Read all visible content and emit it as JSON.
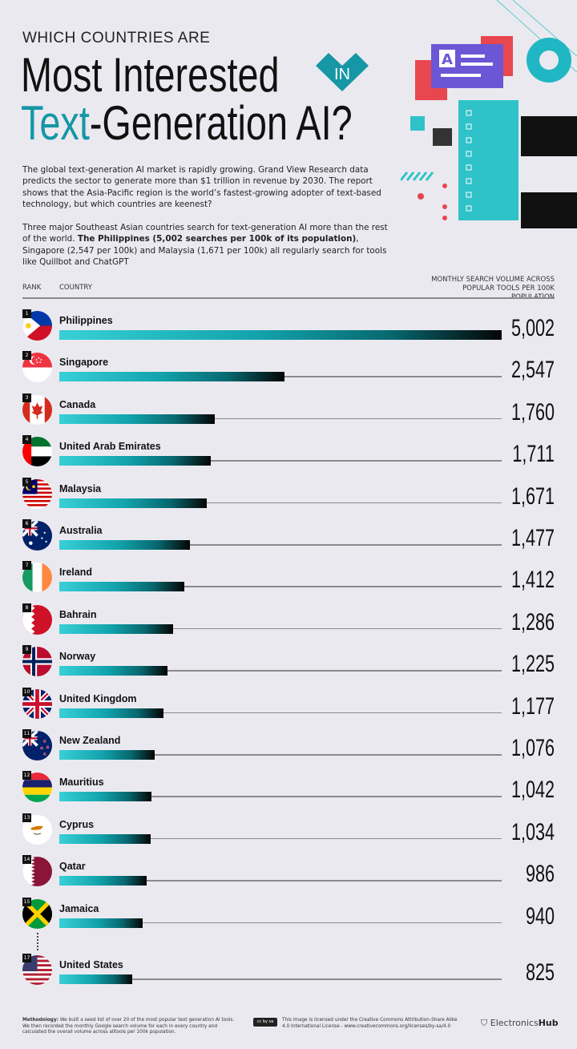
{
  "header": {
    "kicker": "WHICH COUNTRIES ARE",
    "title_line1": "Most Interested",
    "badge": "IN",
    "title_teal": "Text",
    "title_rest": "-Generation AI?"
  },
  "intro": {
    "p1": "The global text-generation AI market is rapidly growing. Grand View Research data predicts the sector to generate more than $1 trillion in revenue by 2030. The report shows that the Asia-Pacific region is the world’s fastest-growing adopter of text-based technology, but which countries are keenest?",
    "p2_a": "Three major Southeast Asian countries search for text-generation AI more than the rest of the world. ",
    "p2_bold": "The Philippines (5,002 searches per 100k of its population)",
    "p2_b": ", Singapore (2,547 per 100k) and Malaysia (1,671 per 100k) all regularly search for tools like Quillbot and ChatGPT"
  },
  "columns": {
    "rank": "RANK",
    "country": "COUNTRY",
    "volume": "MONTHLY SEARCH VOLUME ACROSS POPULAR TOOLS PER 100K POPULATION"
  },
  "colors": {
    "teal": "#1597a5",
    "bar_start": "#38d0d6",
    "bar_end": "#050505"
  },
  "chart_data": {
    "type": "bar",
    "orientation": "horizontal",
    "title": "Which Countries Are Most Interested In Text-Generation AI?",
    "xlabel": "Monthly search volume across popular tools per 100k population",
    "ylabel": "Country",
    "xlim": [
      0,
      5002
    ],
    "rows": [
      {
        "rank": "1",
        "country": "Philippines",
        "value": 5002,
        "label": "5,002",
        "flag": "flag-philippines-icon"
      },
      {
        "rank": "2",
        "country": "Singapore",
        "value": 2547,
        "label": "2,547",
        "flag": "flag-singapore-icon"
      },
      {
        "rank": "3",
        "country": "Canada",
        "value": 1760,
        "label": "1,760",
        "flag": "flag-canada-icon"
      },
      {
        "rank": "4",
        "country": "United Arab Emirates",
        "value": 1711,
        "label": "1,711",
        "flag": "flag-uae-icon"
      },
      {
        "rank": "5",
        "country": "Malaysia",
        "value": 1671,
        "label": "1,671",
        "flag": "flag-malaysia-icon"
      },
      {
        "rank": "6",
        "country": "Australia",
        "value": 1477,
        "label": "1,477",
        "flag": "flag-australia-icon"
      },
      {
        "rank": "7",
        "country": "Ireland",
        "value": 1412,
        "label": "1,412",
        "flag": "flag-ireland-icon"
      },
      {
        "rank": "8",
        "country": "Bahrain",
        "value": 1286,
        "label": "1,286",
        "flag": "flag-bahrain-icon"
      },
      {
        "rank": "9",
        "country": "Norway",
        "value": 1225,
        "label": "1,225",
        "flag": "flag-norway-icon"
      },
      {
        "rank": "10",
        "country": "United Kingdom",
        "value": 1177,
        "label": "1,177",
        "flag": "flag-uk-icon"
      },
      {
        "rank": "11",
        "country": "New Zealand",
        "value": 1076,
        "label": "1,076",
        "flag": "flag-new-zealand-icon"
      },
      {
        "rank": "12",
        "country": "Mauritius",
        "value": 1042,
        "label": "1,042",
        "flag": "flag-mauritius-icon"
      },
      {
        "rank": "13",
        "country": "Cyprus",
        "value": 1034,
        "label": "1,034",
        "flag": "flag-cyprus-icon"
      },
      {
        "rank": "14",
        "country": "Qatar",
        "value": 986,
        "label": "986",
        "flag": "flag-qatar-icon"
      },
      {
        "rank": "15",
        "country": "Jamaica",
        "value": 940,
        "label": "940",
        "flag": "flag-jamaica-icon"
      },
      {
        "rank": "17",
        "country": "United States",
        "value": 825,
        "label": "825",
        "flag": "flag-usa-icon"
      }
    ]
  },
  "footer": {
    "methodology_label": "Methodology:",
    "methodology": " We built a seed list of over 20 of the most popular text generation AI tools. We then recorded the monthly Google search volume for each in every country and calculated the overall volume across alltools per 100k population.",
    "cc_badge": "cc by sa",
    "license": "This image is licensed under the Creative Commons Attribution-Share Alike 4.0 International License - www.creativecommons.org/licenses/by-sa/4.0",
    "logo_a": "Electronics",
    "logo_b": "Hub"
  }
}
